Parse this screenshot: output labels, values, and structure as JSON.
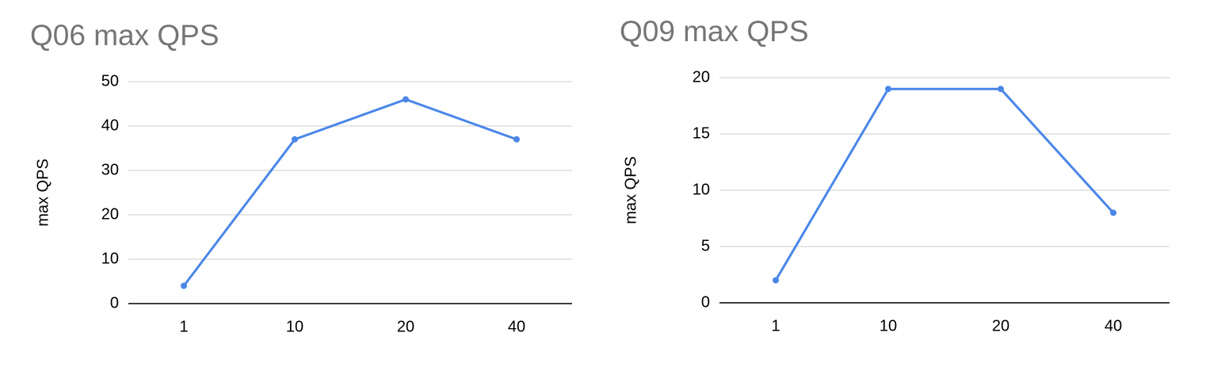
{
  "chart_data": [
    {
      "type": "line",
      "title": "Q06 max QPS",
      "y_label": "max QPS",
      "categories": [
        "1",
        "10",
        "20",
        "40"
      ],
      "series": [
        {
          "name": "max QPS",
          "color": "#4a86e8",
          "values": [
            4,
            37,
            46,
            37
          ]
        }
      ],
      "ylim": [
        0,
        50
      ],
      "yticks": [
        0,
        10,
        20,
        30,
        40,
        50
      ],
      "grid": true
    },
    {
      "type": "line",
      "title": "Q09 max QPS",
      "y_label": "max QPS",
      "categories": [
        "1",
        "10",
        "20",
        "40"
      ],
      "series": [
        {
          "name": "max QPS",
          "color": "#4a86e8",
          "values": [
            2,
            19,
            19,
            8
          ]
        }
      ],
      "ylim": [
        0,
        20
      ],
      "yticks": [
        0,
        5,
        10,
        15,
        20
      ],
      "grid": true
    }
  ]
}
